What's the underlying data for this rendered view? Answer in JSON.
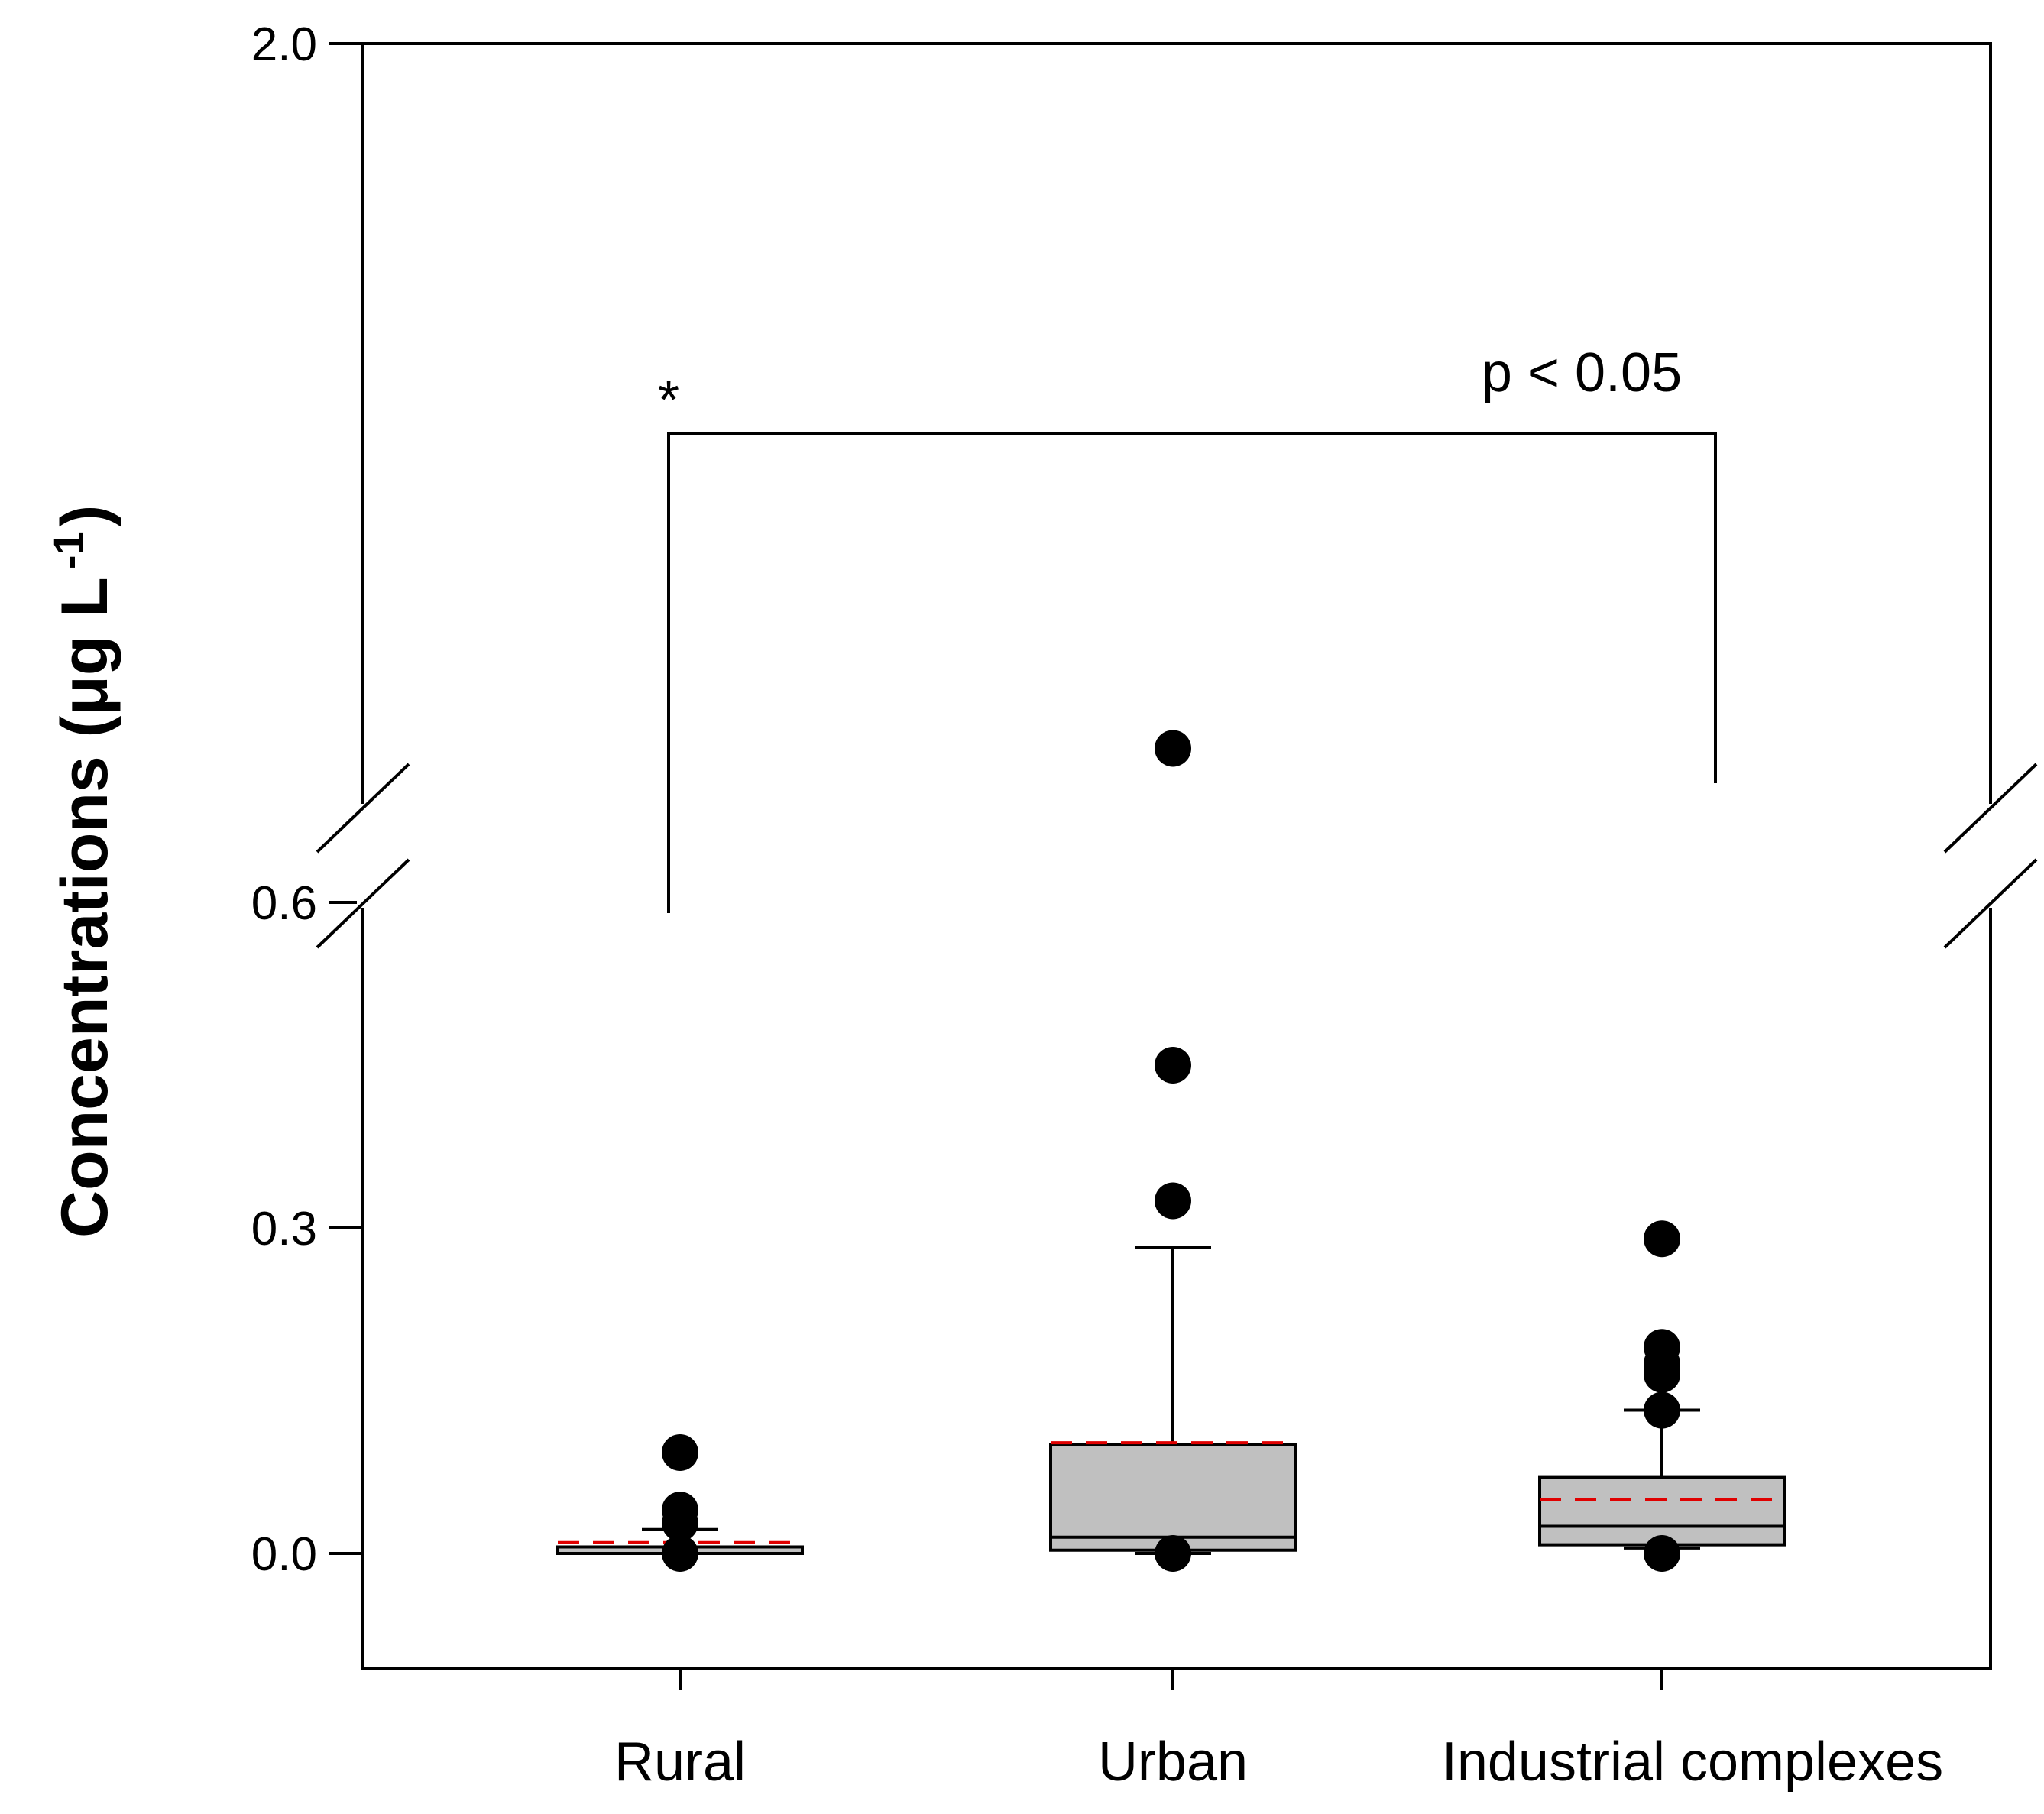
{
  "chart_data": {
    "type": "box",
    "ylabel": "Concentrations (μg L",
    "ylabel_superscript": "-1",
    "ylabel_close": ")",
    "y_axis_break": [
      0.6,
      2.0
    ],
    "ylim": [
      -0.1,
      2.0
    ],
    "yticks": [
      {
        "value": 0.0,
        "label": "0.0"
      },
      {
        "value": 0.3,
        "label": "0.3"
      },
      {
        "value": 0.6,
        "label": "0.6"
      },
      {
        "value": 2.0,
        "label": "2.0"
      }
    ],
    "categories": [
      "Rural",
      "Urban",
      "Industrial complexes"
    ],
    "boxes": [
      {
        "category": "Rural",
        "whisker_low": 0.0,
        "q1": 0.0,
        "median": 0.0,
        "q3": 0.006,
        "whisker_high": 0.022,
        "mean": 0.01,
        "outliers": [
          0.0,
          0.028,
          0.04,
          0.093
        ]
      },
      {
        "category": "Urban",
        "whisker_low": 0.0,
        "q1": 0.003,
        "median": 0.015,
        "q3": 0.1,
        "whisker_high": 0.282,
        "mean": 0.102,
        "outliers": [
          0.0,
          0.325,
          0.45,
          0.85
        ]
      },
      {
        "category": "Industrial complexes",
        "whisker_low": 0.005,
        "q1": 0.008,
        "median": 0.025,
        "q3": 0.07,
        "whisker_high": 0.132,
        "mean": 0.05,
        "outliers": [
          0.0,
          0.132,
          0.165,
          0.175,
          0.19,
          0.29
        ]
      }
    ],
    "median_color": "#000000",
    "mean_color": "#e00000",
    "box_fill": "#c0c0c0",
    "significance": {
      "from": "Rural",
      "to": "Industrial complexes",
      "label": "p < 0.05",
      "marker": "*"
    }
  }
}
